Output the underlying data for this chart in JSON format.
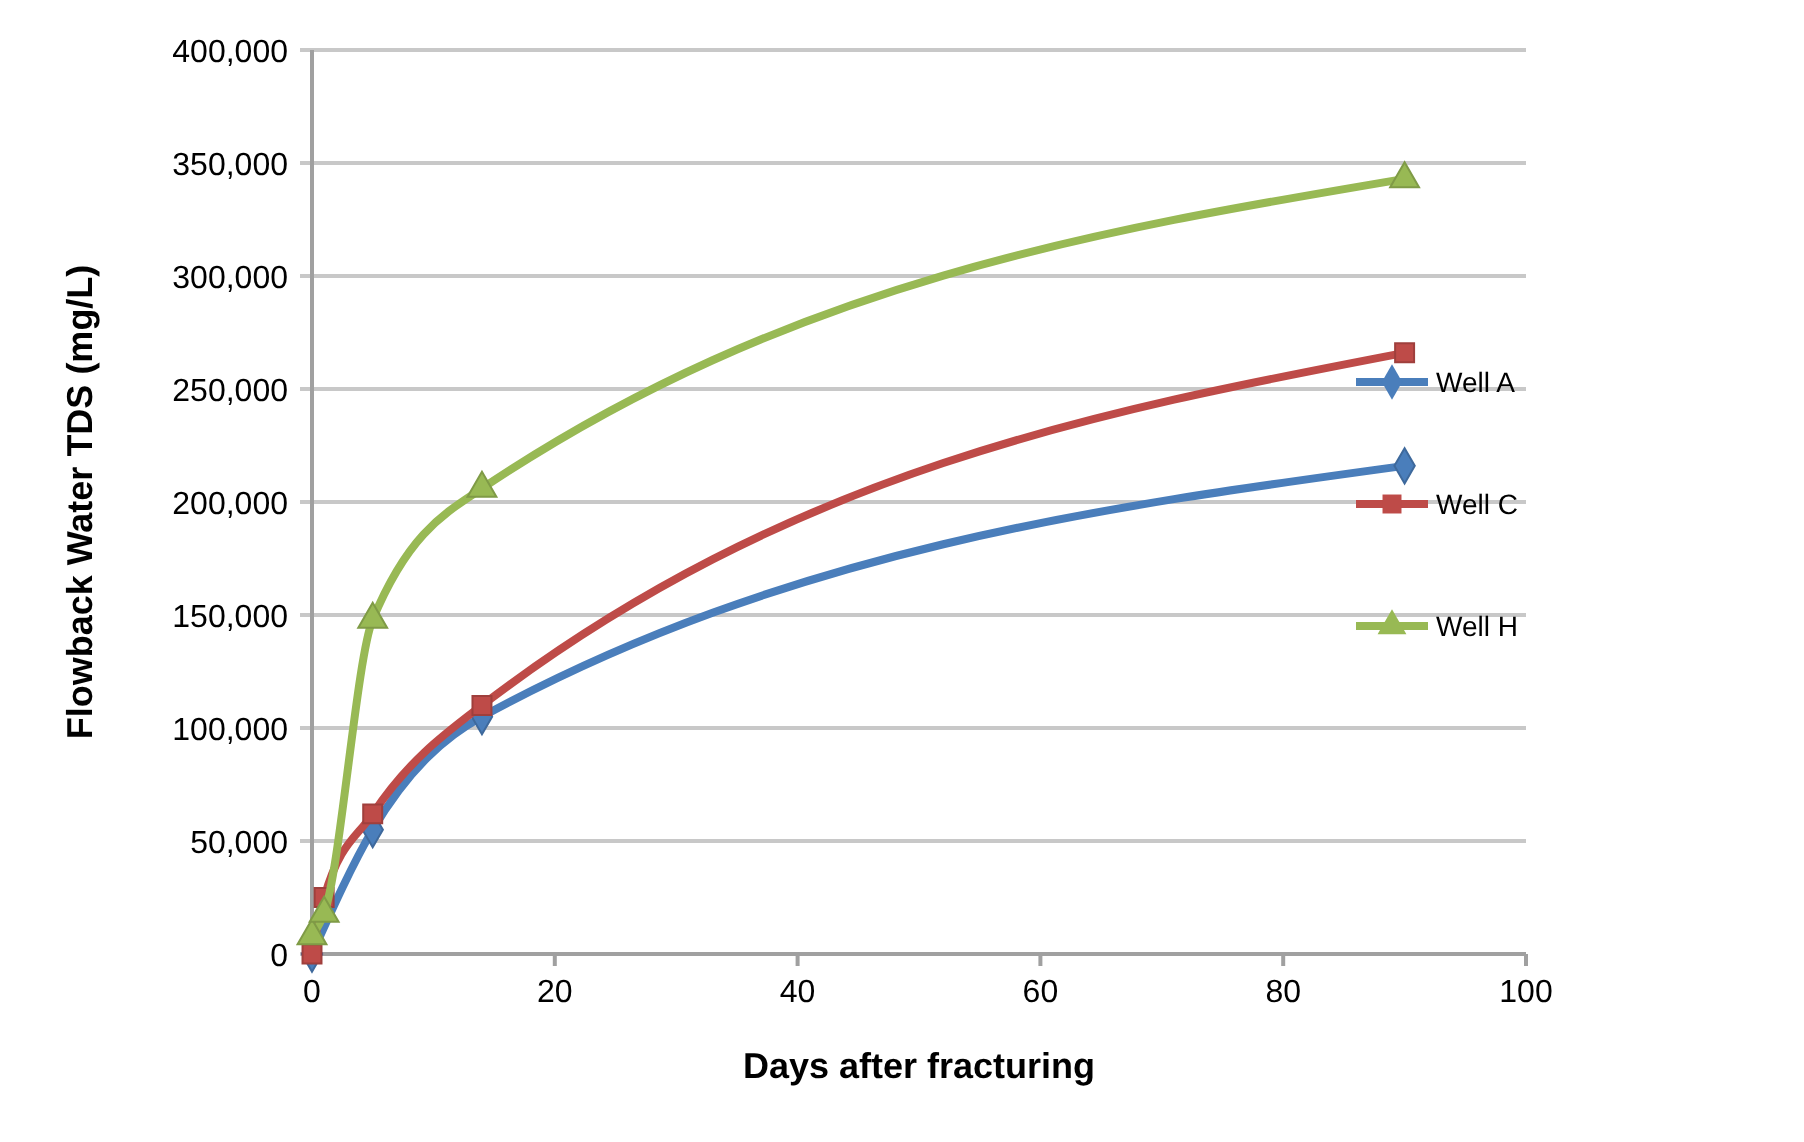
{
  "chart_data": {
    "type": "line",
    "xlabel": "Days after fracturing",
    "ylabel": "Flowback Water TDS (mg/L)",
    "xlim": [
      0,
      100
    ],
    "xticks": [
      0,
      20,
      40,
      60,
      80,
      100
    ],
    "ylim": [
      0,
      400000
    ],
    "yticks": [
      {
        "value": 0,
        "label": "0"
      },
      {
        "value": 50000,
        "label": "50,000"
      },
      {
        "value": 100000,
        "label": "100,000"
      },
      {
        "value": 150000,
        "label": "150,000"
      },
      {
        "value": 200000,
        "label": "200,000"
      },
      {
        "value": 250000,
        "label": "250,000"
      },
      {
        "value": 300000,
        "label": "300,000"
      },
      {
        "value": 350000,
        "label": "350,000"
      },
      {
        "value": 400000,
        "label": "400,000"
      }
    ],
    "grid": "y",
    "legend": "right",
    "series": [
      {
        "name": "Well A",
        "color": "#4a7ebb",
        "marker": "diamond",
        "x": [
          0,
          1,
          5,
          14,
          90
        ],
        "values": [
          0,
          null,
          55000,
          105000,
          216000
        ]
      },
      {
        "name": "Well C",
        "color": "#be4b48",
        "marker": "square",
        "x": [
          0,
          1,
          5,
          14,
          90
        ],
        "values": [
          0,
          25000,
          62000,
          110000,
          266000
        ]
      },
      {
        "name": "Well H",
        "color": "#98b954",
        "marker": "triangle",
        "x": [
          0,
          1,
          5,
          14,
          90
        ],
        "values": [
          8000,
          18000,
          148000,
          206000,
          343000
        ]
      }
    ]
  }
}
